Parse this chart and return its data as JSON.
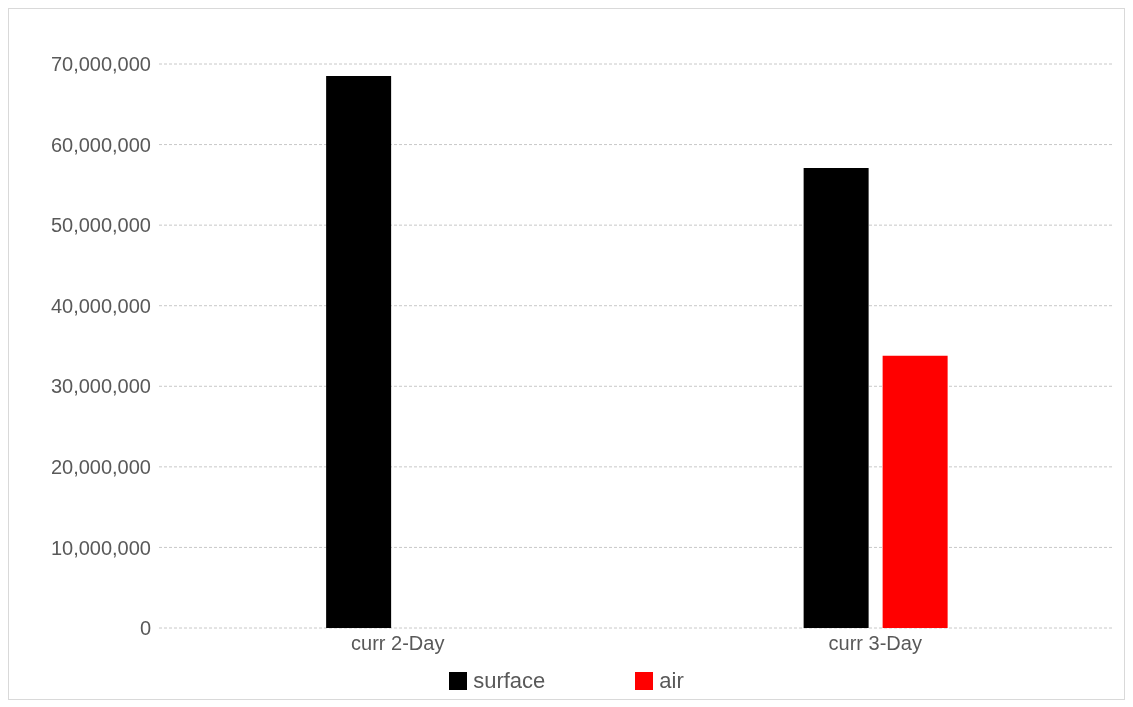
{
  "chart_data": {
    "type": "bar",
    "categories": [
      "curr 2-Day",
      "curr 3-Day"
    ],
    "series": [
      {
        "name": "surface",
        "color": "#000000",
        "values": [
          68500000,
          57100000
        ]
      },
      {
        "name": "air",
        "color": "#ff0000",
        "values": [
          null,
          33800000
        ]
      }
    ],
    "ylim": [
      0,
      70000000
    ],
    "yticks": [
      0,
      {
        "value": 10000000,
        "label": "10,000,000"
      },
      {
        "value": 20000000,
        "label": "20,000,000"
      },
      {
        "value": 30000000,
        "label": "30,000,000"
      },
      {
        "value": 40000000,
        "label": "40,000,000"
      },
      {
        "value": 50000000,
        "label": "50,000,000"
      },
      {
        "value": 60000000,
        "label": "60,000,000"
      },
      {
        "value": 70000000,
        "label": "70,000,000"
      }
    ],
    "grid": "y",
    "legend": "bottom"
  }
}
